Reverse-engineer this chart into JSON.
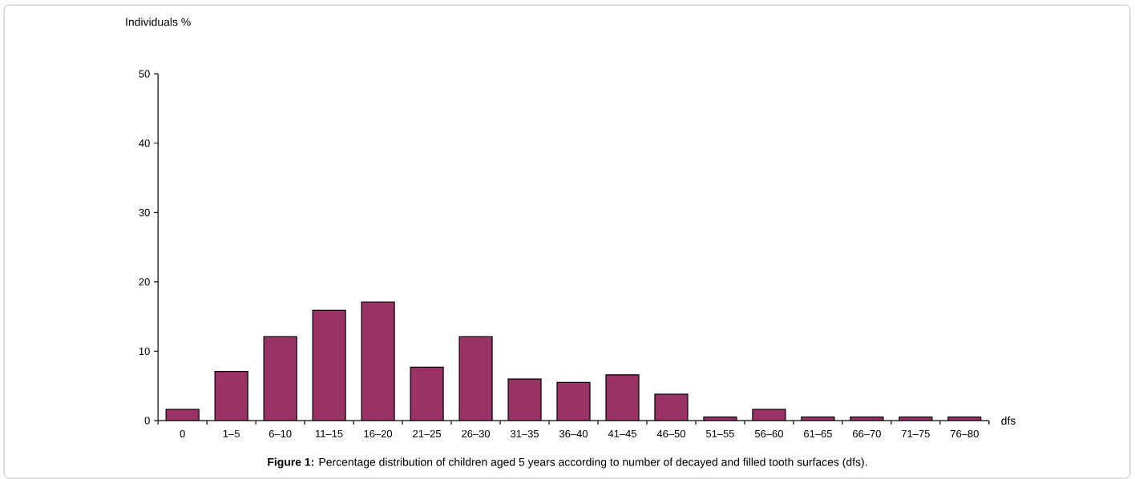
{
  "chart_data": {
    "type": "bar",
    "ylabel": "Individuals %",
    "xlabel": "dfs",
    "categories": [
      "0",
      "1–5",
      "6–10",
      "11–15",
      "16–20",
      "21–25",
      "26–30",
      "31–35",
      "36–40",
      "41–45",
      "46–50",
      "51–55",
      "56–60",
      "61–65",
      "66–70",
      "71–75",
      "76–80"
    ],
    "values": [
      1.6,
      7.1,
      12.1,
      15.9,
      17.1,
      7.7,
      12.1,
      6.0,
      5.5,
      6.6,
      3.8,
      0.5,
      1.6,
      0.5,
      0.5,
      0.5,
      0.5
    ],
    "color": "#993366",
    "ylim": [
      0,
      50
    ],
    "yticks": [
      0,
      10,
      20,
      30,
      40,
      50
    ],
    "annotations": [
      "**Figure 1:** Percentage distribution of children aged 5 years according to number of decayed and filled tooth surfaces (dfs)."
    ]
  }
}
